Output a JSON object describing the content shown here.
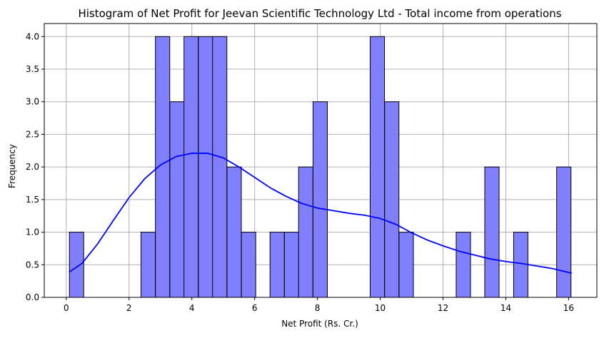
{
  "chart_data": {
    "type": "bar",
    "title": "Histogram of Net Profit for Jeevan Scientific Technology Ltd - Total income from operations",
    "xlabel": "Net Profit (Rs. Cr.)",
    "ylabel": "Frequency",
    "xlim": [
      -0.7,
      16.9
    ],
    "ylim": [
      0,
      4.2
    ],
    "xticks": [
      0,
      2,
      4,
      6,
      8,
      10,
      12,
      14,
      16
    ],
    "yticks": [
      0.0,
      0.5,
      1.0,
      1.5,
      2.0,
      2.5,
      3.0,
      3.5,
      4.0
    ],
    "xtick_labels": [
      "0",
      "2",
      "4",
      "6",
      "8",
      "10",
      "12",
      "14",
      "16"
    ],
    "ytick_labels": [
      "0.0",
      "0.5",
      "1.0",
      "1.5",
      "2.0",
      "2.5",
      "3.0",
      "3.5",
      "4.0"
    ],
    "grid": true,
    "bin_width": 0.456,
    "bins": [
      {
        "start": 0.1,
        "count": 1
      },
      {
        "start": 0.56,
        "count": 0
      },
      {
        "start": 1.01,
        "count": 0
      },
      {
        "start": 1.47,
        "count": 0
      },
      {
        "start": 1.93,
        "count": 0
      },
      {
        "start": 2.38,
        "count": 1
      },
      {
        "start": 2.84,
        "count": 4
      },
      {
        "start": 3.3,
        "count": 3
      },
      {
        "start": 3.75,
        "count": 4
      },
      {
        "start": 4.21,
        "count": 4
      },
      {
        "start": 4.66,
        "count": 4
      },
      {
        "start": 5.12,
        "count": 2
      },
      {
        "start": 5.58,
        "count": 1
      },
      {
        "start": 6.03,
        "count": 0
      },
      {
        "start": 6.49,
        "count": 1
      },
      {
        "start": 6.95,
        "count": 1
      },
      {
        "start": 7.4,
        "count": 2
      },
      {
        "start": 7.86,
        "count": 3
      },
      {
        "start": 8.32,
        "count": 0
      },
      {
        "start": 8.77,
        "count": 0
      },
      {
        "start": 9.23,
        "count": 0
      },
      {
        "start": 9.68,
        "count": 4
      },
      {
        "start": 10.14,
        "count": 3
      },
      {
        "start": 10.6,
        "count": 1
      },
      {
        "start": 11.05,
        "count": 0
      },
      {
        "start": 11.51,
        "count": 0
      },
      {
        "start": 11.97,
        "count": 0
      },
      {
        "start": 12.42,
        "count": 1
      },
      {
        "start": 12.88,
        "count": 0
      },
      {
        "start": 13.33,
        "count": 2
      },
      {
        "start": 13.79,
        "count": 0
      },
      {
        "start": 14.25,
        "count": 1
      },
      {
        "start": 14.7,
        "count": 0
      },
      {
        "start": 15.16,
        "count": 0
      },
      {
        "start": 15.62,
        "count": 2
      }
    ],
    "kde": {
      "x": [
        0.1,
        0.5,
        1.0,
        1.5,
        2.0,
        2.5,
        3.0,
        3.5,
        4.0,
        4.5,
        5.0,
        5.5,
        6.0,
        6.5,
        7.0,
        7.5,
        8.0,
        8.5,
        9.0,
        9.5,
        10.0,
        10.5,
        11.0,
        11.5,
        12.0,
        12.5,
        13.0,
        13.5,
        14.0,
        14.5,
        15.0,
        15.5,
        16.1
      ],
      "y": [
        0.39,
        0.52,
        0.82,
        1.18,
        1.53,
        1.82,
        2.03,
        2.16,
        2.21,
        2.21,
        2.14,
        2.0,
        1.84,
        1.68,
        1.55,
        1.44,
        1.37,
        1.33,
        1.29,
        1.26,
        1.21,
        1.12,
        0.99,
        0.88,
        0.79,
        0.71,
        0.65,
        0.59,
        0.55,
        0.52,
        0.48,
        0.44,
        0.37
      ]
    },
    "colors": {
      "bar_fill": "#8080ff",
      "bar_edge": "#000000",
      "kde_line": "#0000ff",
      "grid": "#b0b0b0"
    }
  }
}
